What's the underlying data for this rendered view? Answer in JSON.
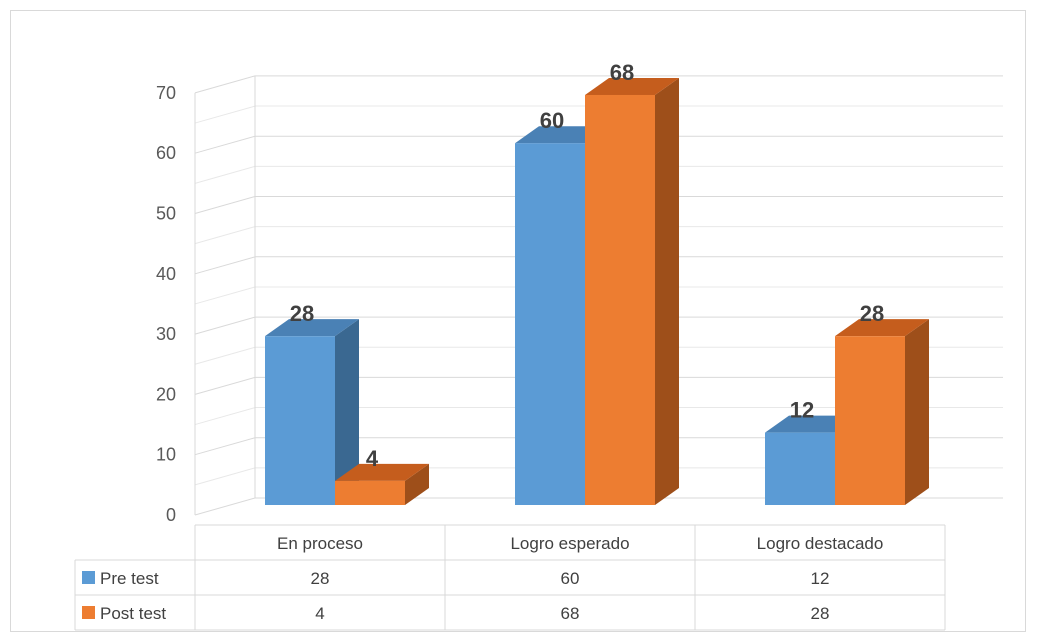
{
  "chart_data": {
    "type": "bar",
    "style": "3d-clustered-column",
    "categories": [
      "En proceso",
      "Logro esperado",
      "Logro destacado"
    ],
    "series": [
      {
        "name": "Pre test",
        "values": [
          28,
          60,
          12
        ],
        "color": "#5b9bd5",
        "side_color": "#3a6891",
        "top_color": "#4a81b5"
      },
      {
        "name": "Post test",
        "values": [
          4,
          68,
          28
        ],
        "color": "#ed7d31",
        "side_color": "#9e4f1a",
        "top_color": "#c55d1d"
      }
    ],
    "ylim": [
      0,
      70
    ],
    "yticks": [
      "0",
      "10",
      "20",
      "30",
      "40",
      "50",
      "60",
      "70"
    ],
    "grid": true,
    "legend": "data-table"
  }
}
